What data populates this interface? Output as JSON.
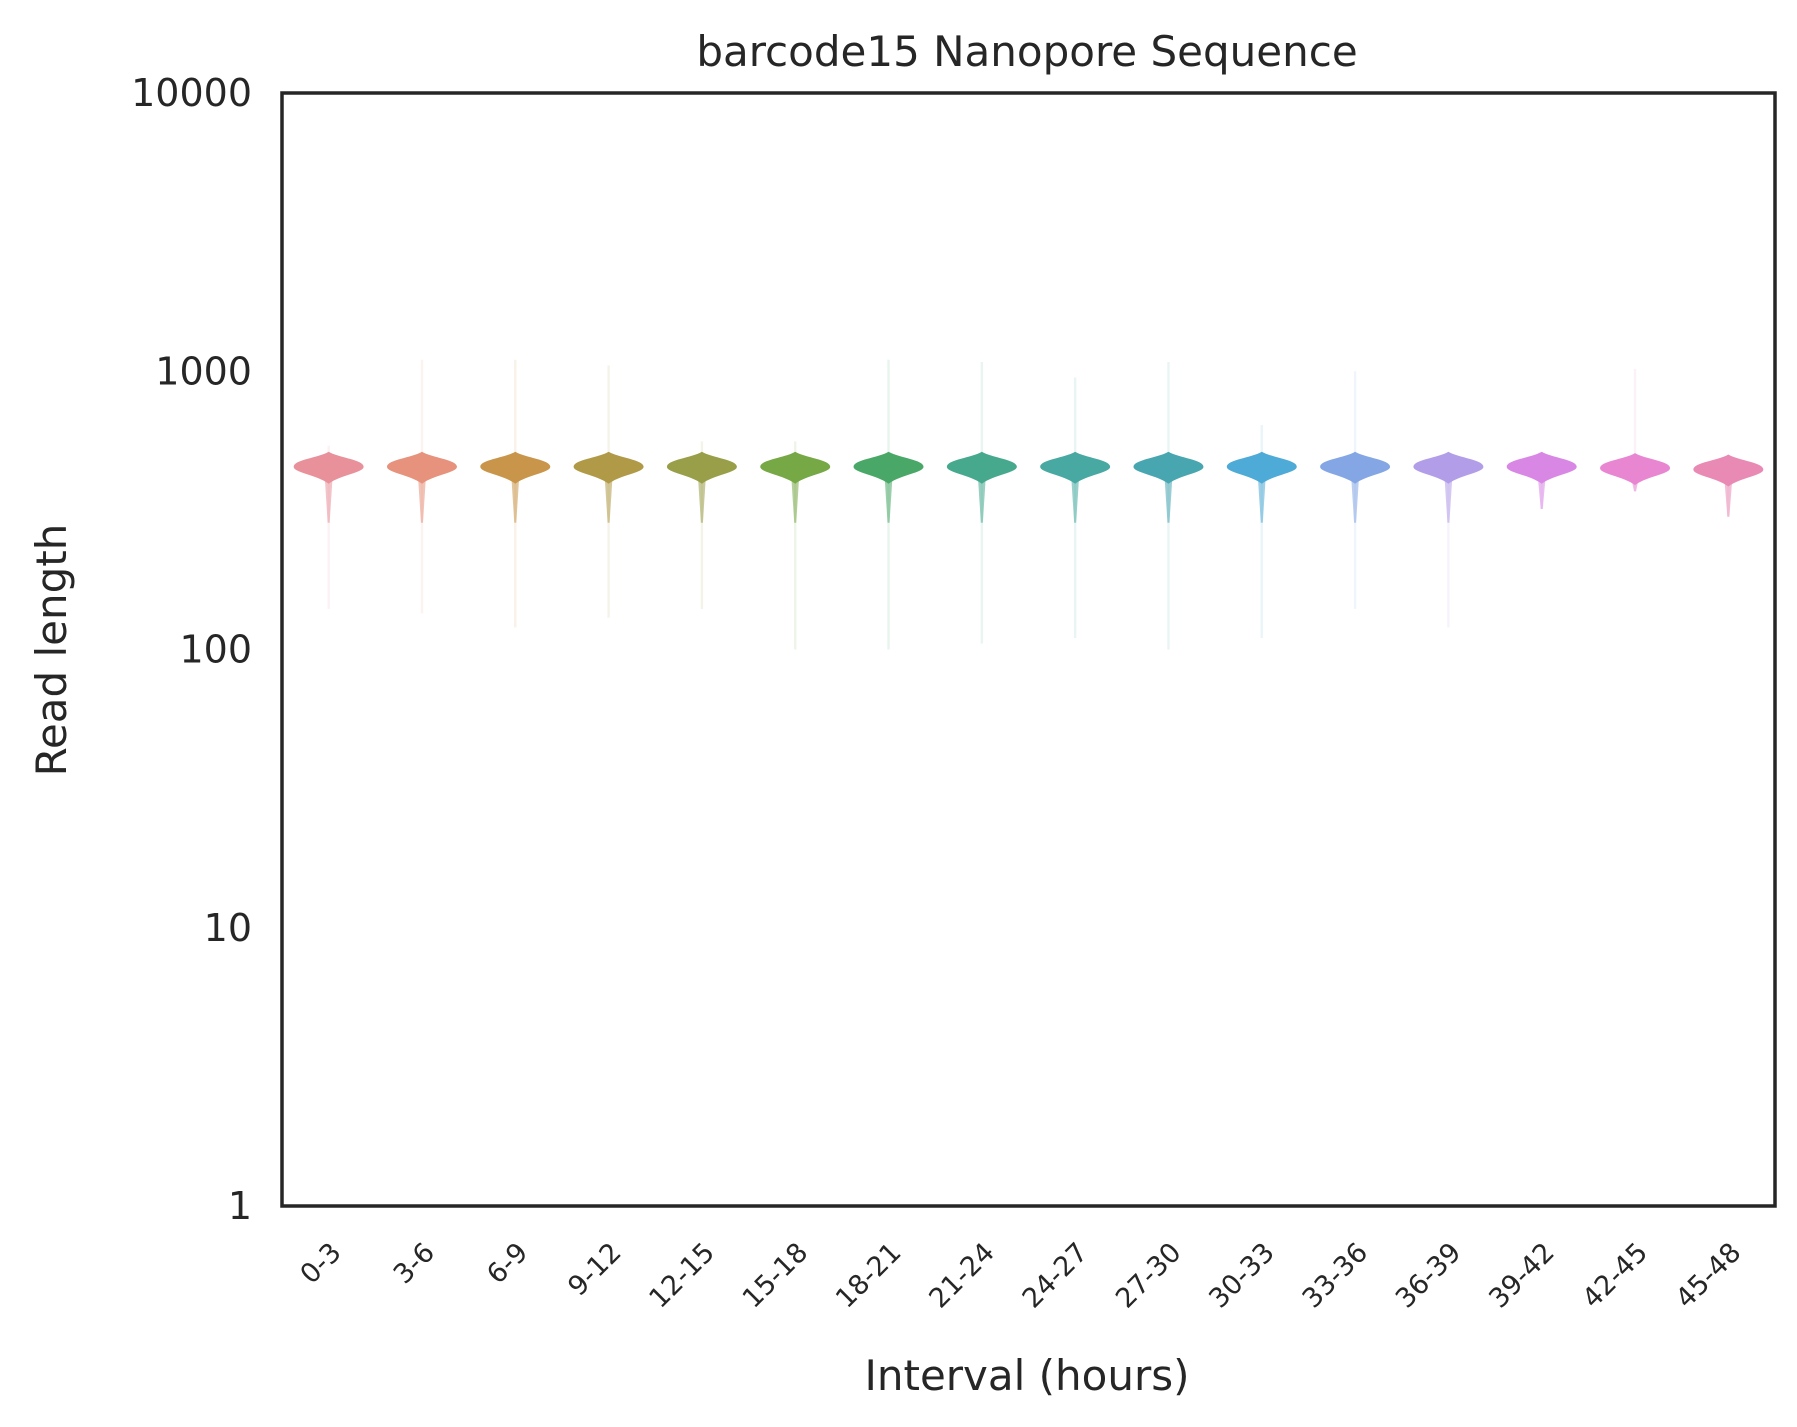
{
  "chart_data": {
    "type": "violin",
    "title": "barcode15 Nanopore Sequence",
    "xlabel": "Interval (hours)",
    "ylabel": "Read length",
    "yscale": "log",
    "ylim": [
      1,
      10000
    ],
    "yticks": [
      {
        "value": 1,
        "label": "1"
      },
      {
        "value": 10,
        "label": "10"
      },
      {
        "value": 100,
        "label": "100"
      },
      {
        "value": 1000,
        "label": "1000"
      },
      {
        "value": 10000,
        "label": "10000"
      }
    ],
    "grid": false,
    "categories": [
      "0-3",
      "3-6",
      "6-9",
      "9-12",
      "12-15",
      "15-18",
      "18-21",
      "21-24",
      "24-27",
      "27-30",
      "30-33",
      "33-36",
      "36-39",
      "39-42",
      "42-45",
      "45-48"
    ],
    "series": [
      {
        "category": "0-3",
        "median": 450,
        "min": 140,
        "max": 540,
        "color": "#e8919a"
      },
      {
        "category": "3-6",
        "median": 450,
        "min": 135,
        "max": 1100,
        "color": "#e6927c"
      },
      {
        "category": "6-9",
        "median": 450,
        "min": 120,
        "max": 1100,
        "color": "#c9954a"
      },
      {
        "category": "9-12",
        "median": 450,
        "min": 130,
        "max": 1050,
        "color": "#b09a48"
      },
      {
        "category": "12-15",
        "median": 450,
        "min": 140,
        "max": 560,
        "color": "#999f48"
      },
      {
        "category": "15-18",
        "median": 450,
        "min": 100,
        "max": 560,
        "color": "#76a845"
      },
      {
        "category": "18-21",
        "median": 450,
        "min": 100,
        "max": 1100,
        "color": "#49a867"
      },
      {
        "category": "21-24",
        "median": 450,
        "min": 105,
        "max": 1080,
        "color": "#46a98e"
      },
      {
        "category": "24-27",
        "median": 450,
        "min": 110,
        "max": 950,
        "color": "#47a9a1"
      },
      {
        "category": "27-30",
        "median": 450,
        "min": 100,
        "max": 1080,
        "color": "#48a6b0"
      },
      {
        "category": "30-33",
        "median": 450,
        "min": 110,
        "max": 640,
        "color": "#4eaad6"
      },
      {
        "category": "33-36",
        "median": 450,
        "min": 140,
        "max": 1000,
        "color": "#84a6e4"
      },
      {
        "category": "36-39",
        "median": 450,
        "min": 120,
        "max": 510,
        "color": "#b29de8"
      },
      {
        "category": "39-42",
        "median": 450,
        "min": 320,
        "max": 490,
        "color": "#d987e5"
      },
      {
        "category": "42-45",
        "median": 445,
        "min": 370,
        "max": 1020,
        "color": "#e986d1"
      },
      {
        "category": "45-48",
        "median": 440,
        "min": 300,
        "max": 480,
        "color": "#e98ab5"
      }
    ]
  }
}
